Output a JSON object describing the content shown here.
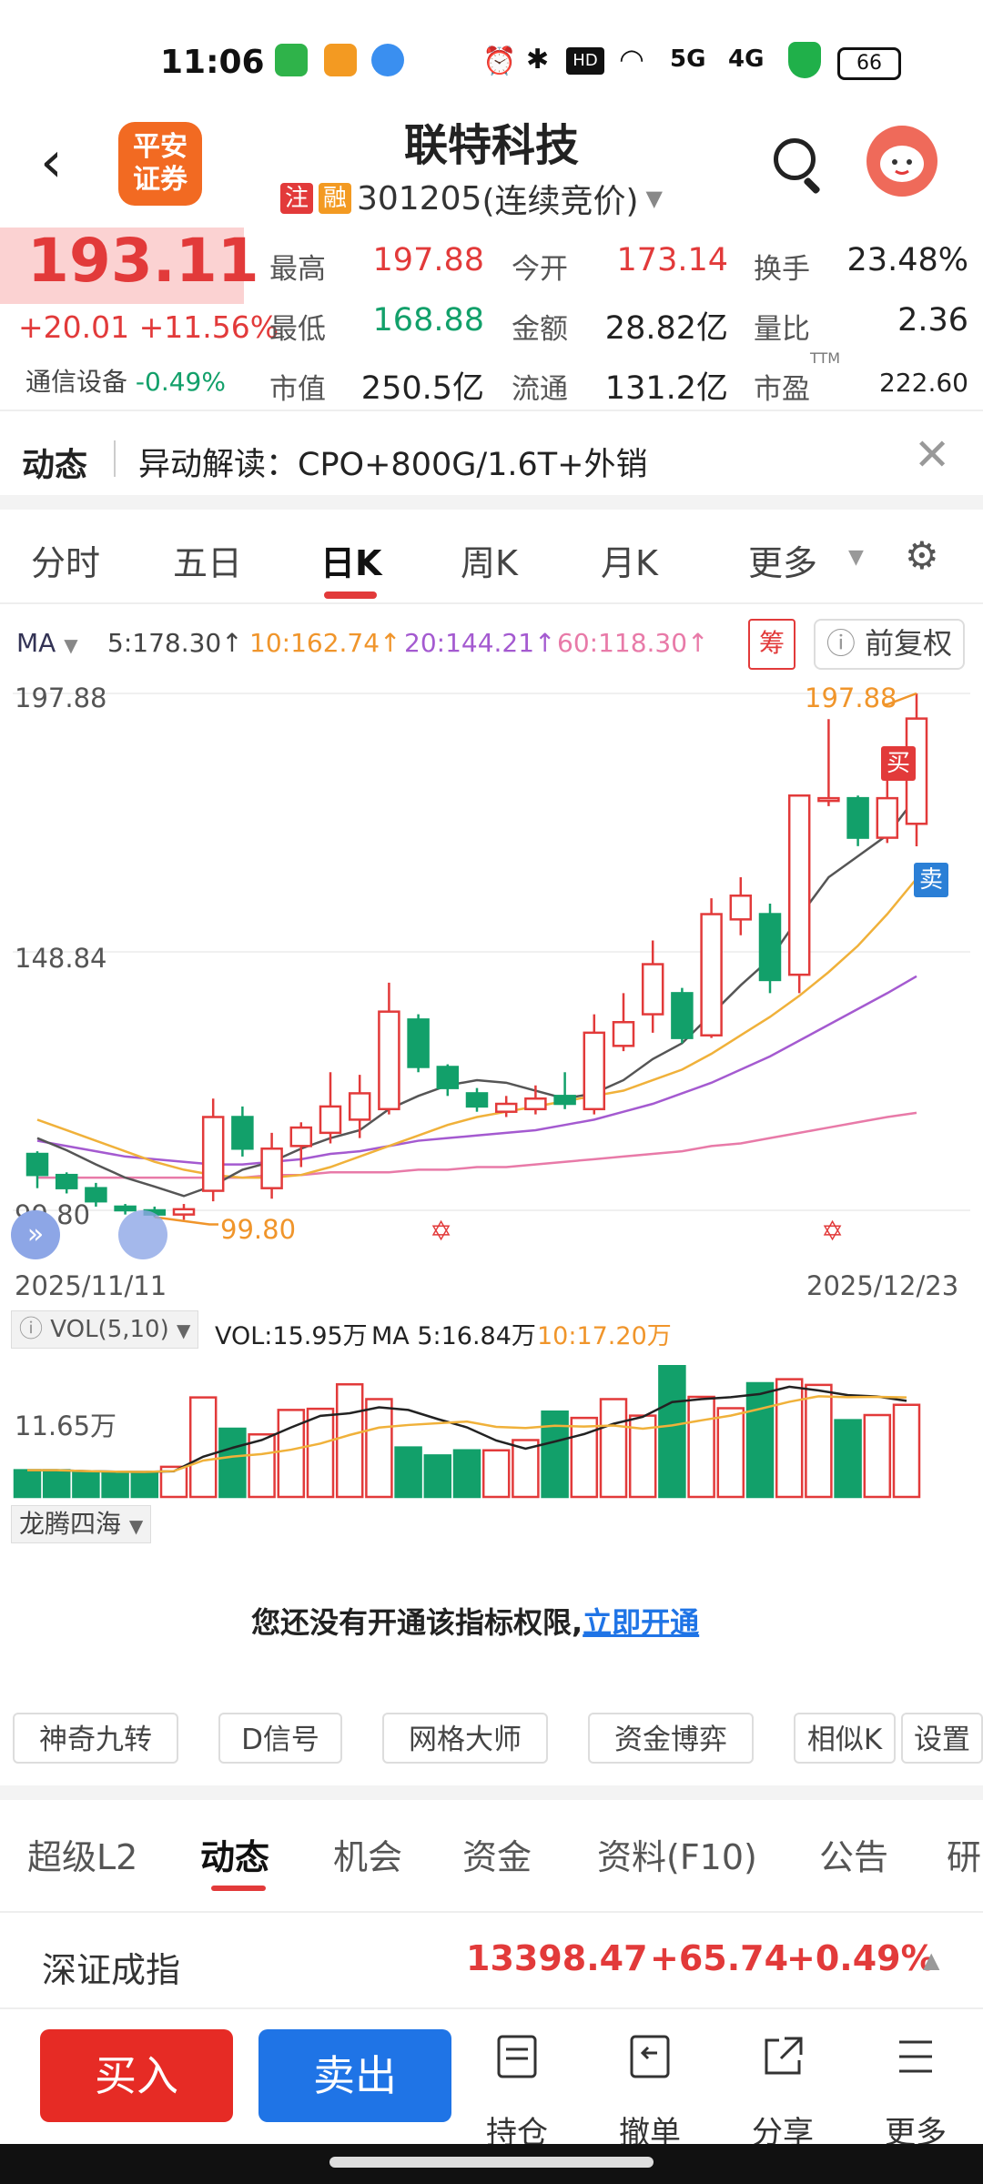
{
  "status_bar": {
    "time": "11:06",
    "battery": "66",
    "network": "5G"
  },
  "header": {
    "title": "联特科技",
    "code": "301205",
    "mode": "(连续竞价)",
    "tag1": "注",
    "tag2": "融",
    "logo_line1": "平安",
    "logo_line2": "证券"
  },
  "quote": {
    "price": "193.11",
    "change": "+20.01",
    "change_pct": "+11.56%",
    "industry": "通信设备",
    "industry_pct": "-0.49%",
    "fields": [
      {
        "label": "最高",
        "value": "197.88"
      },
      {
        "label": "今开",
        "value": "173.14"
      },
      {
        "label": "换手",
        "value": "23.48%"
      },
      {
        "label": "最低",
        "value": "168.88"
      },
      {
        "label": "金额",
        "value": "28.82亿"
      },
      {
        "label": "量比",
        "value": "2.36"
      },
      {
        "label": "市值",
        "value": "250.5亿"
      },
      {
        "label": "流通",
        "value": "131.2亿"
      },
      {
        "label": "市盈",
        "value": "222.60"
      }
    ],
    "pe_sup": "TTM"
  },
  "news": {
    "label": "动态",
    "text": "异动解读：CPO+800G/1.6T+外销"
  },
  "chart_tabs": [
    "分时",
    "五日",
    "日K",
    "周K",
    "月K",
    "更多"
  ],
  "ma_row": {
    "name": "MA",
    "ma5": "5:178.30↑",
    "ma10": "10:162.74↑",
    "ma20": "20:144.21↑",
    "ma60": "60:118.30↑",
    "chips": "筹",
    "adjust": "前复权"
  },
  "colors": {
    "up": "#e23a3a",
    "down": "#12a06a",
    "ma5": "#555555",
    "ma10": "#f0b13a",
    "ma20": "#a45ad0",
    "ma60": "#e87aa8"
  },
  "chart_data": {
    "type": "candlestick",
    "y_labels": [
      "197.88",
      "148.84",
      "99.80"
    ],
    "high_label": "197.88",
    "low_label": "99.80",
    "x_start": "2025/11/11",
    "x_end": "2025/12/23",
    "buy_marker": "买",
    "sell_marker": "卖",
    "ylim": [
      99.8,
      197.88
    ],
    "candles": [
      {
        "o": 110.5,
        "c": 106.5,
        "h": 111.0,
        "l": 104.0
      },
      {
        "o": 106.5,
        "c": 104.0,
        "h": 107.0,
        "l": 103.0
      },
      {
        "o": 104.0,
        "c": 101.5,
        "h": 105.0,
        "l": 100.5
      },
      {
        "o": 100.5,
        "c": 99.8,
        "h": 101.0,
        "l": 99.0
      },
      {
        "o": 99.8,
        "c": 99.0,
        "h": 100.5,
        "l": 98.5
      },
      {
        "o": 99.0,
        "c": 100.0,
        "h": 101.0,
        "l": 98.0
      },
      {
        "o": 103.5,
        "c": 117.5,
        "h": 121.0,
        "l": 101.5
      },
      {
        "o": 117.5,
        "c": 111.5,
        "h": 119.5,
        "l": 110.0
      },
      {
        "o": 104.0,
        "c": 111.5,
        "h": 114.5,
        "l": 102.0
      },
      {
        "o": 112.0,
        "c": 115.5,
        "h": 116.5,
        "l": 108.0
      },
      {
        "o": 114.5,
        "c": 119.5,
        "h": 126.0,
        "l": 112.5
      },
      {
        "o": 117.0,
        "c": 122.0,
        "h": 125.5,
        "l": 113.5
      },
      {
        "o": 119.0,
        "c": 137.5,
        "h": 143.0,
        "l": 118.0
      },
      {
        "o": 136.0,
        "c": 127.0,
        "h": 137.0,
        "l": 126.0
      },
      {
        "o": 127.0,
        "c": 123.0,
        "h": 127.5,
        "l": 121.5
      },
      {
        "o": 122.0,
        "c": 119.5,
        "h": 123.0,
        "l": 118.5
      },
      {
        "o": 118.5,
        "c": 120.0,
        "h": 121.5,
        "l": 117.5
      },
      {
        "o": 119.0,
        "c": 121.0,
        "h": 123.5,
        "l": 118.0
      },
      {
        "o": 121.5,
        "c": 120.0,
        "h": 126.0,
        "l": 119.0
      },
      {
        "o": 119.0,
        "c": 133.5,
        "h": 137.0,
        "l": 118.0
      },
      {
        "o": 131.0,
        "c": 135.5,
        "h": 141.0,
        "l": 130.0
      },
      {
        "o": 137.0,
        "c": 146.5,
        "h": 151.0,
        "l": 133.5
      },
      {
        "o": 141.0,
        "c": 132.5,
        "h": 142.0,
        "l": 131.5
      },
      {
        "o": 133.0,
        "c": 156.0,
        "h": 159.0,
        "l": 132.5
      },
      {
        "o": 155.0,
        "c": 159.5,
        "h": 163.0,
        "l": 152.0
      },
      {
        "o": 156.0,
        "c": 143.5,
        "h": 158.0,
        "l": 141.0
      },
      {
        "o": 144.5,
        "c": 178.5,
        "h": 178.5,
        "l": 141.0
      },
      {
        "o": 178.0,
        "c": 178.0,
        "h": 193.0,
        "l": 176.5
      },
      {
        "o": 178.0,
        "c": 170.5,
        "h": 178.5,
        "l": 168.9
      },
      {
        "o": 170.5,
        "c": 178.0,
        "h": 182.0,
        "l": 169.5
      },
      {
        "o": 173.14,
        "c": 193.11,
        "h": 197.88,
        "l": 168.88
      }
    ],
    "ma5": [
      113.5,
      111.2,
      108.5,
      106.0,
      104.3,
      102.5,
      104.5,
      107.5,
      109.0,
      111.5,
      113.5,
      115.0,
      119.0,
      121.5,
      123.5,
      124.5,
      124.0,
      122.5,
      121.0,
      122.0,
      124.5,
      128.5,
      131.5,
      137.0,
      142.5,
      147.5,
      155.5,
      163.0,
      167.0,
      171.0,
      178.3
    ],
    "ma10": [
      117.0,
      115.0,
      113.0,
      111.0,
      109.0,
      107.5,
      106.5,
      106.0,
      106.0,
      106.5,
      108.0,
      110.0,
      112.0,
      114.0,
      116.0,
      117.5,
      118.5,
      119.5,
      120.5,
      121.5,
      122.5,
      124.5,
      126.5,
      129.5,
      133.0,
      136.5,
      140.5,
      145.0,
      150.0,
      156.0,
      162.74
    ],
    "ma20": [
      113.0,
      112.0,
      111.0,
      110.0,
      109.5,
      109.0,
      108.5,
      108.5,
      109.0,
      109.5,
      110.5,
      111.0,
      112.0,
      113.0,
      113.5,
      114.0,
      114.5,
      115.0,
      116.0,
      117.0,
      118.5,
      120.0,
      122.0,
      124.0,
      126.5,
      129.0,
      132.0,
      135.0,
      138.0,
      141.0,
      144.21
    ],
    "ma60": [
      106.0,
      106.0,
      106.0,
      106.0,
      106.0,
      106.0,
      106.0,
      106.0,
      106.5,
      106.5,
      107.0,
      107.0,
      107.0,
      107.5,
      107.5,
      108.0,
      108.0,
      108.5,
      109.0,
      109.5,
      110.0,
      110.5,
      111.0,
      112.0,
      112.5,
      113.5,
      114.5,
      115.5,
      116.5,
      117.5,
      118.3
    ]
  },
  "volume": {
    "label": "VOL(5,10)",
    "vol": "VOL:15.95万",
    "ma5": "MA 5:16.84万",
    "ma10": "10:17.20万",
    "axis_label": "11.65万",
    "values": [
      0.47,
      0.47,
      0.42,
      0.42,
      0.42,
      0.53,
      1.75,
      1.2,
      1.1,
      1.53,
      1.55,
      1.98,
      1.72,
      0.87,
      0.73,
      0.82,
      0.82,
      1.0,
      1.5,
      1.39,
      1.72,
      1.43,
      2.3,
      1.76,
      1.56,
      2.0,
      2.07,
      1.97,
      1.35,
      1.44,
      1.62
    ]
  },
  "indicator": {
    "name": "龙腾四海",
    "notice": "您还没有开通该指标权限,",
    "link": "立即开通"
  },
  "tools": [
    "神奇九转",
    "D信号",
    "网格大师",
    "资金博弈",
    "相似K",
    "设置"
  ],
  "bottom_tabs": [
    "超级L2",
    "动态",
    "机会",
    "资金",
    "资料(F10)",
    "公告",
    "研"
  ],
  "index": {
    "name": "深证成指",
    "value": "13398.47",
    "change": "+65.74",
    "pct": "+0.49%"
  },
  "actions": {
    "buy": "买入",
    "sell": "卖出",
    "hold": "持仓",
    "cancel": "撤单",
    "share": "分享",
    "more": "更多"
  }
}
